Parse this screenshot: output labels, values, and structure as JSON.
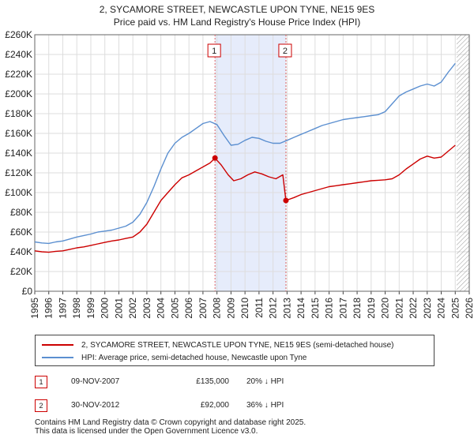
{
  "chart_data": {
    "type": "line",
    "title": "2, SYCAMORE STREET, NEWCASTLE UPON TYNE, NE15 9ES",
    "subtitle": "Price paid vs. HM Land Registry's House Price Index (HPI)",
    "xlabel": "",
    "ylabel": "",
    "xlim": [
      1995,
      2026
    ],
    "ylim": [
      0,
      260000
    ],
    "x_ticks": [
      "1995",
      "1996",
      "1997",
      "1998",
      "1999",
      "2000",
      "2001",
      "2002",
      "2003",
      "2004",
      "2005",
      "2006",
      "2007",
      "2008",
      "2009",
      "2010",
      "2011",
      "2012",
      "2013",
      "2014",
      "2015",
      "2016",
      "2017",
      "2018",
      "2019",
      "2020",
      "2021",
      "2022",
      "2023",
      "2024",
      "2025",
      "2026"
    ],
    "y_ticks": [
      {
        "value": 0,
        "label": "£0"
      },
      {
        "value": 20000,
        "label": "£20K"
      },
      {
        "value": 40000,
        "label": "£40K"
      },
      {
        "value": 60000,
        "label": "£60K"
      },
      {
        "value": 80000,
        "label": "£80K"
      },
      {
        "value": 100000,
        "label": "£100K"
      },
      {
        "value": 120000,
        "label": "£120K"
      },
      {
        "value": 140000,
        "label": "£140K"
      },
      {
        "value": 160000,
        "label": "£160K"
      },
      {
        "value": 180000,
        "label": "£180K"
      },
      {
        "value": 200000,
        "label": "£200K"
      },
      {
        "value": 220000,
        "label": "£220K"
      },
      {
        "value": 240000,
        "label": "£240K"
      },
      {
        "value": 260000,
        "label": "£260K"
      }
    ],
    "grid": true,
    "shaded_range": [
      2007.86,
      2012.92
    ],
    "future_hatch_from": 2025.1,
    "series": [
      {
        "name": "2, SYCAMORE STREET, NEWCASTLE UPON TYNE, NE15 9ES (semi-detached house)",
        "color": "#cc0000",
        "x": [
          1995.0,
          1995.5,
          1996.0,
          1996.5,
          1997.0,
          1997.5,
          1998.0,
          1998.5,
          1999.0,
          1999.5,
          2000.0,
          2000.5,
          2001.0,
          2001.5,
          2002.0,
          2002.5,
          2003.0,
          2003.5,
          2004.0,
          2004.5,
          2005.0,
          2005.5,
          2006.0,
          2006.5,
          2007.0,
          2007.5,
          2007.86,
          2008.3,
          2008.8,
          2009.2,
          2009.7,
          2010.2,
          2010.7,
          2011.2,
          2011.7,
          2012.2,
          2012.7,
          2012.92,
          2013.5,
          2014.0,
          2014.5,
          2015.0,
          2015.5,
          2016.0,
          2016.5,
          2017.0,
          2017.5,
          2018.0,
          2018.5,
          2019.0,
          2019.5,
          2020.0,
          2020.5,
          2021.0,
          2021.5,
          2022.0,
          2022.5,
          2023.0,
          2023.5,
          2024.0,
          2024.5,
          2025.0
        ],
        "values": [
          41000,
          40000,
          39500,
          40500,
          41000,
          42500,
          44000,
          45000,
          46500,
          48000,
          49500,
          51000,
          52000,
          53500,
          55000,
          60000,
          68000,
          80000,
          92000,
          100000,
          108000,
          115000,
          118000,
          122000,
          126000,
          130000,
          135000,
          128000,
          118000,
          112000,
          114000,
          118000,
          121000,
          119000,
          116000,
          114000,
          118000,
          92000,
          95000,
          98000,
          100000,
          102000,
          104000,
          106000,
          107000,
          108000,
          109000,
          110000,
          111000,
          112000,
          112500,
          113000,
          114000,
          118000,
          124000,
          129000,
          134000,
          137000,
          135000,
          136000,
          142000,
          148000
        ]
      },
      {
        "name": "HPI: Average price, semi-detached house, Newcastle upon Tyne",
        "color": "#5b8fd0",
        "x": [
          1995.0,
          1995.5,
          1996.0,
          1996.5,
          1997.0,
          1997.5,
          1998.0,
          1998.5,
          1999.0,
          1999.5,
          2000.0,
          2000.5,
          2001.0,
          2001.5,
          2002.0,
          2002.5,
          2003.0,
          2003.5,
          2004.0,
          2004.5,
          2005.0,
          2005.5,
          2006.0,
          2006.5,
          2007.0,
          2007.5,
          2008.0,
          2008.5,
          2009.0,
          2009.5,
          2010.0,
          2010.5,
          2011.0,
          2011.5,
          2012.0,
          2012.5,
          2013.0,
          2013.5,
          2014.0,
          2014.5,
          2015.0,
          2015.5,
          2016.0,
          2016.5,
          2017.0,
          2017.5,
          2018.0,
          2018.5,
          2019.0,
          2019.5,
          2020.0,
          2020.5,
          2021.0,
          2021.5,
          2022.0,
          2022.5,
          2023.0,
          2023.5,
          2024.0,
          2024.5,
          2025.0
        ],
        "values": [
          50000,
          49000,
          48500,
          50000,
          51000,
          53000,
          55000,
          56500,
          58000,
          60000,
          61000,
          62000,
          64000,
          66000,
          70000,
          78000,
          90000,
          106000,
          124000,
          140000,
          150000,
          156000,
          160000,
          165000,
          170000,
          172000,
          169000,
          158000,
          148000,
          149000,
          153000,
          156000,
          155000,
          152000,
          150000,
          150000,
          153000,
          156000,
          159000,
          162000,
          165000,
          168000,
          170000,
          172000,
          174000,
          175000,
          176000,
          177000,
          178000,
          179000,
          182000,
          190000,
          198000,
          202000,
          205000,
          208000,
          210000,
          208000,
          212000,
          222000,
          231000
        ]
      }
    ],
    "annotations": [
      {
        "label": "1",
        "x": 2007.86,
        "value": 135000
      },
      {
        "label": "2",
        "x": 2012.92,
        "value": 92000
      }
    ]
  },
  "legend": {
    "property_label": "2, SYCAMORE STREET, NEWCASTLE UPON TYNE, NE15 9ES (semi-detached house)",
    "hpi_label": "HPI: Average price, semi-detached house, Newcastle upon Tyne"
  },
  "transactions": [
    {
      "num": "1",
      "date": "09-NOV-2007",
      "price": "£135,000",
      "hpi": "20% ↓ HPI"
    },
    {
      "num": "2",
      "date": "30-NOV-2012",
      "price": "£92,000",
      "hpi": "36% ↓ HPI"
    }
  ],
  "footer": {
    "line1": "Contains HM Land Registry data © Crown copyright and database right 2025.",
    "line2": "This data is licensed under the Open Government Licence v3.0."
  },
  "colors": {
    "property_line": "#cc0000",
    "hpi_line": "#5b8fd0",
    "shade": "#e6ecfb",
    "grid": "#dddddd"
  }
}
